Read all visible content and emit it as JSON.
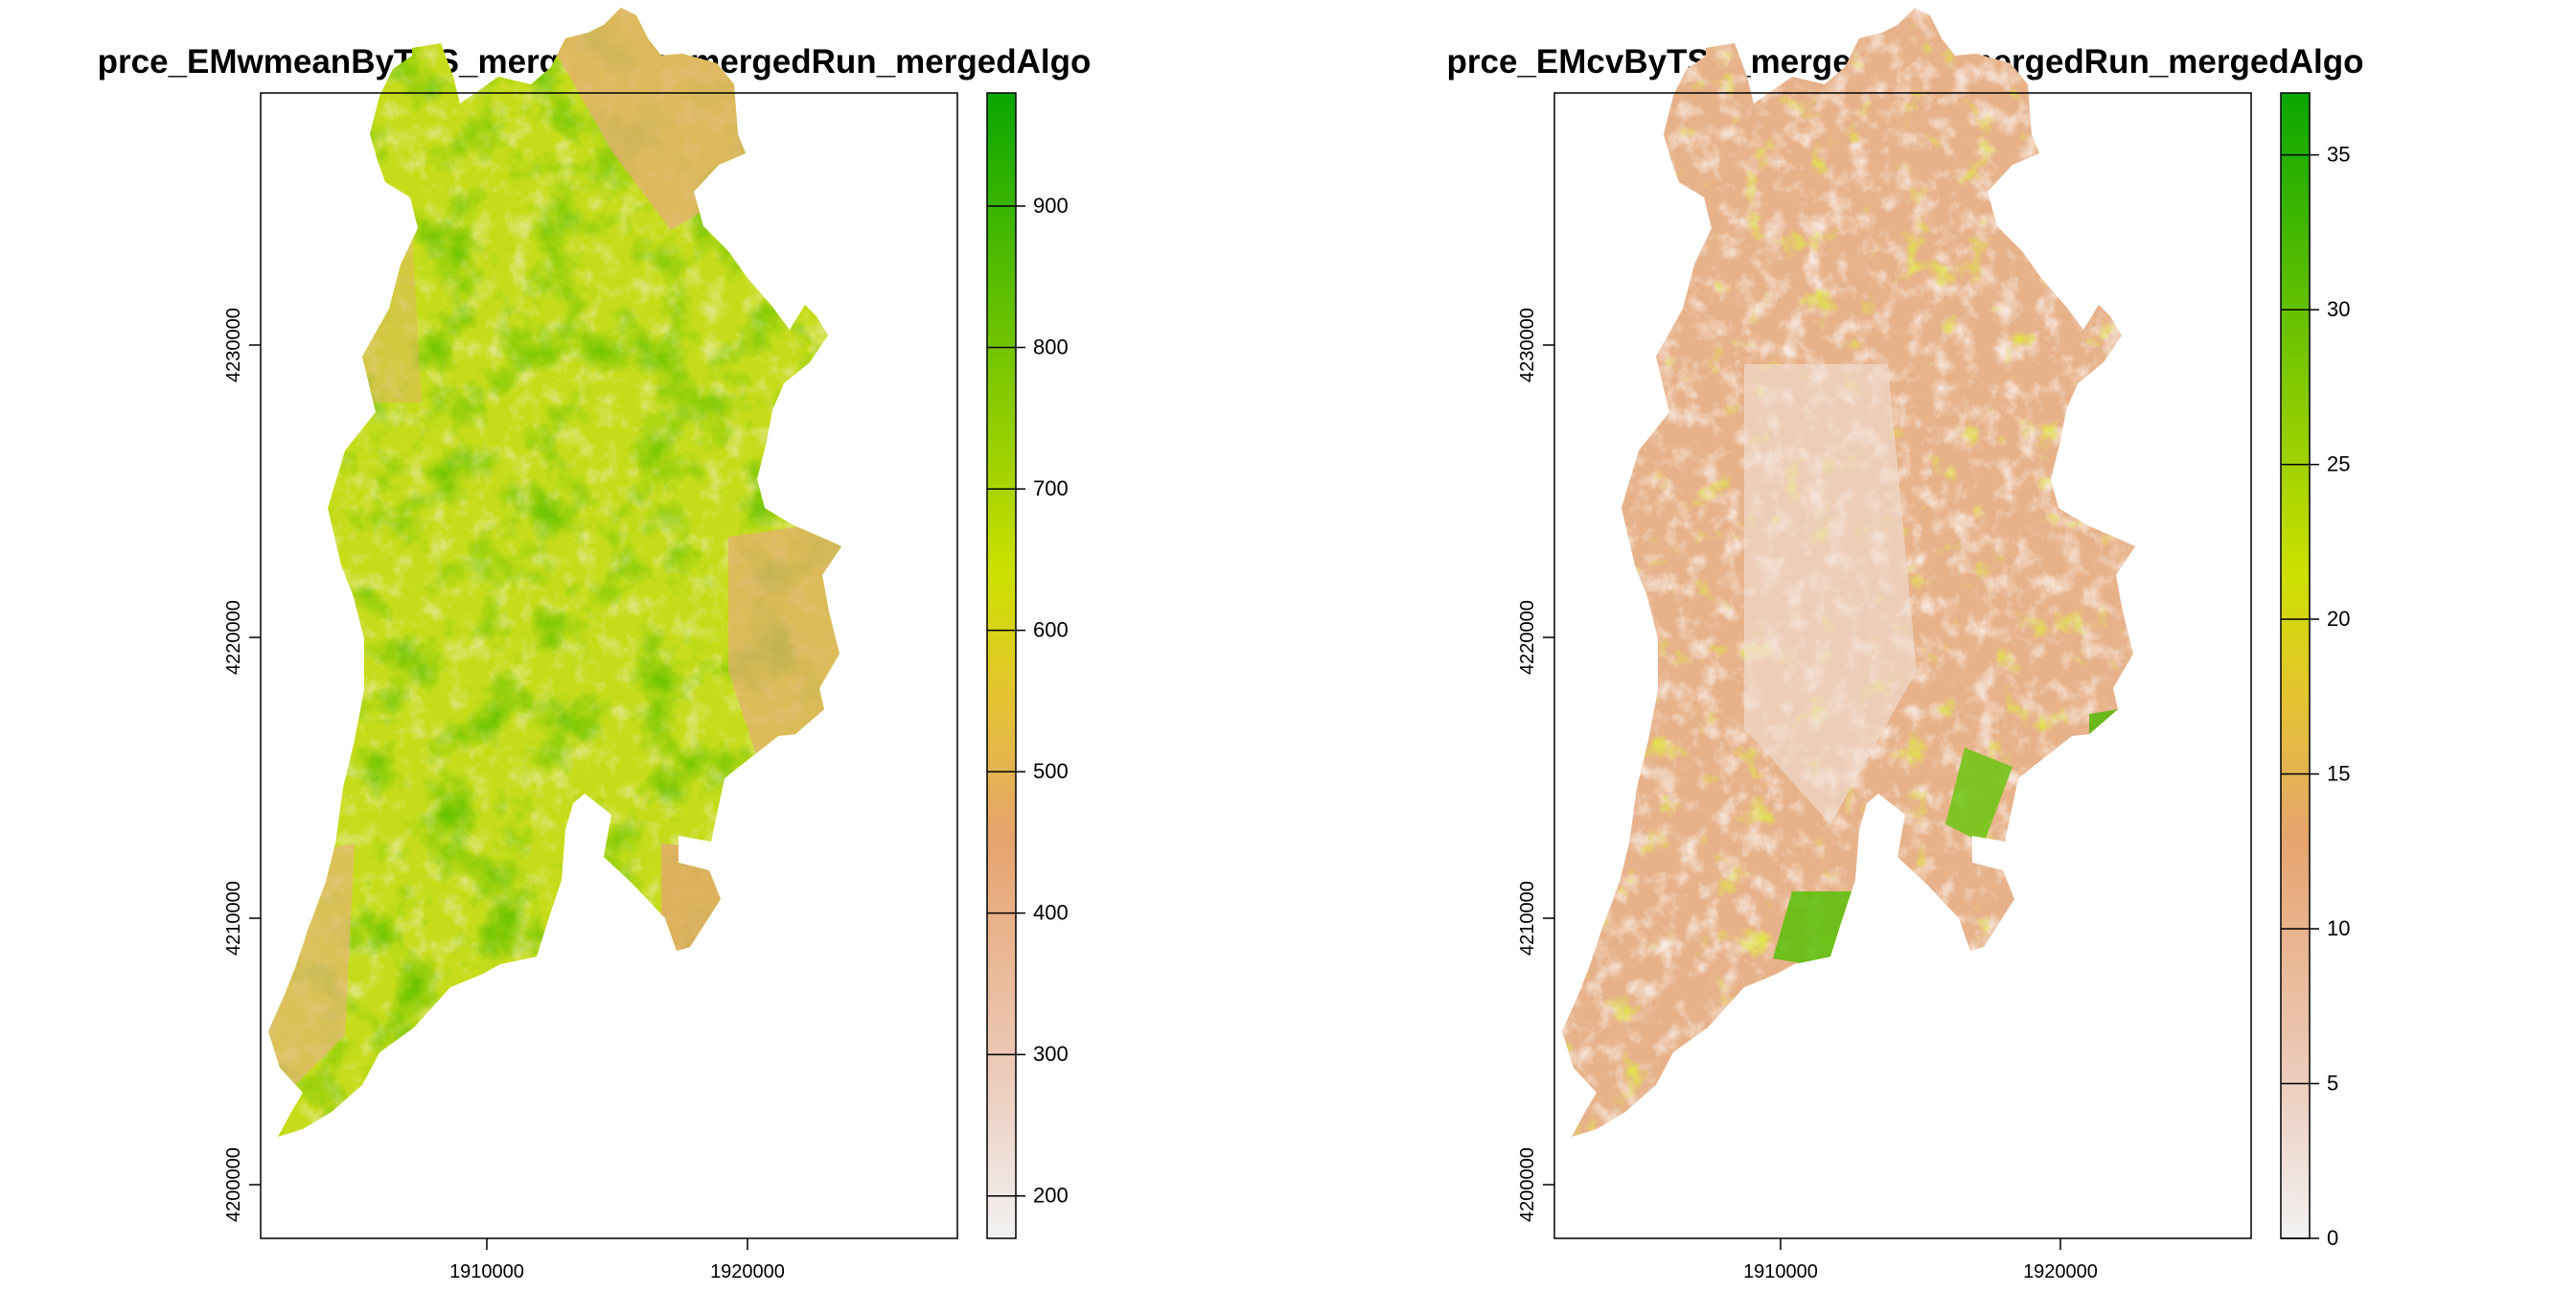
{
  "panels": [
    {
      "title": "prce_EMwmeanByTSS_mergedData_mergedRun_mergedAlgo",
      "x_ticks": [
        "1910000",
        "1920000"
      ],
      "y_ticks": [
        "4230000",
        "4220000",
        "4210000",
        "4200000"
      ],
      "legend": {
        "min": 170,
        "max": 980,
        "ticks": [
          "200",
          "300",
          "400",
          "500",
          "600",
          "700",
          "800",
          "900"
        ],
        "colors": [
          "#f2f2f2",
          "#ecc9b8",
          "#e6a46e",
          "#e3c62d",
          "#cde000",
          "#8ccc00",
          "#4dba00",
          "#0aa600"
        ]
      }
    },
    {
      "title": "prce_EMcvByTSS_mergedData_mergedRun_mergedAlgo",
      "x_ticks": [
        "1910000",
        "1920000"
      ],
      "y_ticks": [
        "4230000",
        "4220000",
        "4210000",
        "4200000"
      ],
      "legend": {
        "min": 0,
        "max": 37,
        "ticks": [
          "0",
          "5",
          "10",
          "15",
          "20",
          "25",
          "30",
          "35"
        ],
        "colors": [
          "#f2f2f2",
          "#ecc9b8",
          "#e6a46e",
          "#e3c62d",
          "#cde000",
          "#8ccc00",
          "#4dba00",
          "#0aa600"
        ]
      }
    }
  ]
}
